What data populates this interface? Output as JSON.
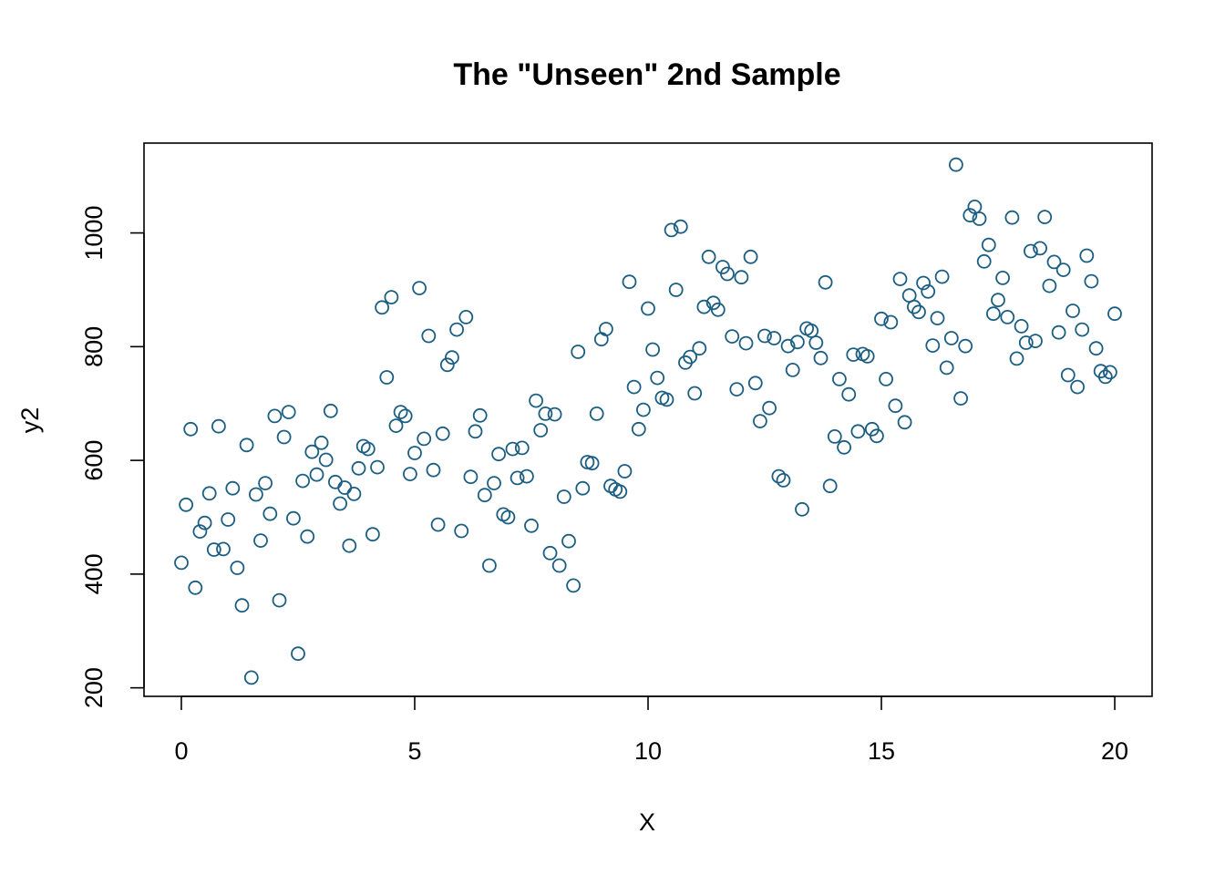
{
  "chart_data": {
    "type": "scatter",
    "title": "The \"Unseen\" 2nd Sample",
    "xlabel": "X",
    "ylabel": "y2",
    "xlim": [
      -0.8,
      20.8
    ],
    "ylim": [
      185,
      1158
    ],
    "x_ticks": [
      0,
      5,
      10,
      15,
      20
    ],
    "y_ticks": [
      200,
      400,
      600,
      800,
      1000
    ],
    "grid": false,
    "legend": "none",
    "point_color": "#1b5e82",
    "series": [
      {
        "x": [
          0.0,
          0.1,
          0.2,
          0.3,
          0.4,
          0.5,
          0.6,
          0.7,
          0.8,
          0.9,
          1.0,
          1.1,
          1.2,
          1.3,
          1.4,
          1.5,
          1.6,
          1.7,
          1.8,
          1.9,
          2.0,
          2.1,
          2.2,
          2.3,
          2.4,
          2.5,
          2.6,
          2.7,
          2.8,
          2.9,
          3.0,
          3.1,
          3.2,
          3.3,
          3.4,
          3.5,
          3.6,
          3.7,
          3.8,
          3.9,
          4.0,
          4.1,
          4.2,
          4.3,
          4.4,
          4.5,
          4.6,
          4.7,
          4.8,
          4.9,
          5.0,
          5.1,
          5.2,
          5.3,
          5.4,
          5.5,
          5.6,
          5.7,
          5.8,
          5.9,
          6.0,
          6.1,
          6.2,
          6.3,
          6.4,
          6.5,
          6.6,
          6.7,
          6.8,
          6.9,
          7.0,
          7.1,
          7.2,
          7.3,
          7.4,
          7.5,
          7.6,
          7.7,
          7.8,
          7.9,
          8.0,
          8.1,
          8.2,
          8.3,
          8.4,
          8.5,
          8.6,
          8.7,
          8.8,
          8.9,
          9.0,
          9.1,
          9.2,
          9.3,
          9.4,
          9.5,
          9.6,
          9.7,
          9.8,
          9.9,
          10.0,
          10.1,
          10.2,
          10.3,
          10.4,
          10.5,
          10.6,
          10.7,
          10.8,
          10.9,
          11.0,
          11.1,
          11.2,
          11.3,
          11.4,
          11.5,
          11.6,
          11.7,
          11.8,
          11.9,
          12.0,
          12.1,
          12.2,
          12.3,
          12.4,
          12.5,
          12.6,
          12.7,
          12.8,
          12.9,
          13.0,
          13.1,
          13.2,
          13.3,
          13.4,
          13.5,
          13.6,
          13.7,
          13.8,
          13.9,
          14.0,
          14.1,
          14.2,
          14.3,
          14.4,
          14.5,
          14.6,
          14.7,
          14.8,
          14.9,
          15.0,
          15.1,
          15.2,
          15.3,
          15.4,
          15.5,
          15.6,
          15.7,
          15.8,
          15.9,
          16.0,
          16.1,
          16.2,
          16.3,
          16.4,
          16.5,
          16.6,
          16.7,
          16.8,
          16.9,
          17.0,
          17.1,
          17.2,
          17.3,
          17.4,
          17.5,
          17.6,
          17.7,
          17.8,
          17.9,
          18.0,
          18.1,
          18.2,
          18.3,
          18.4,
          18.5,
          18.6,
          18.7,
          18.8,
          18.9,
          19.0,
          19.1,
          19.2,
          19.3,
          19.4,
          19.5,
          19.6,
          19.7,
          19.8,
          19.9,
          20.0
        ],
        "y": [
          420,
          522,
          655,
          376,
          475,
          490,
          542,
          443,
          660,
          444,
          496,
          551,
          411,
          345,
          627,
          218,
          540,
          459,
          560,
          506,
          678,
          354,
          641,
          685,
          498,
          260,
          564,
          466,
          615,
          575,
          631,
          601,
          687,
          562,
          524,
          552,
          450,
          541,
          586,
          625,
          620,
          470,
          588,
          869,
          746,
          887,
          661,
          685,
          678,
          576,
          613,
          903,
          638,
          819,
          583,
          487,
          647,
          768,
          781,
          830,
          476,
          852,
          571,
          651,
          679,
          539,
          415,
          560,
          611,
          505,
          500,
          620,
          569,
          622,
          572,
          485,
          705,
          653,
          682,
          437,
          681,
          415,
          536,
          458,
          380,
          791,
          551,
          597,
          595,
          682,
          813,
          831,
          555,
          549,
          545,
          581,
          914,
          729,
          655,
          689,
          867,
          795,
          745,
          710,
          707,
          1005,
          900,
          1011,
          772,
          782,
          718,
          797,
          870,
          958,
          877,
          865,
          940,
          928,
          818,
          725,
          922,
          806,
          958,
          736,
          669,
          819,
          692,
          815,
          572,
          565,
          801,
          759,
          808,
          514,
          832,
          828,
          807,
          780,
          913,
          555,
          642,
          743,
          623,
          716,
          786,
          651,
          787,
          783,
          655,
          643,
          849,
          743,
          843,
          696,
          919,
          667,
          890,
          870,
          861,
          912,
          897,
          802,
          850,
          923,
          763,
          815,
          1120,
          709,
          801,
          1031,
          1046,
          1025,
          950,
          979,
          858,
          882,
          921,
          852,
          1027,
          779,
          836,
          807,
          968,
          810,
          973,
          1028,
          907,
          949,
          825,
          935,
          750,
          863,
          729,
          830,
          960,
          915,
          797,
          757,
          747,
          755,
          858
        ]
      }
    ]
  }
}
